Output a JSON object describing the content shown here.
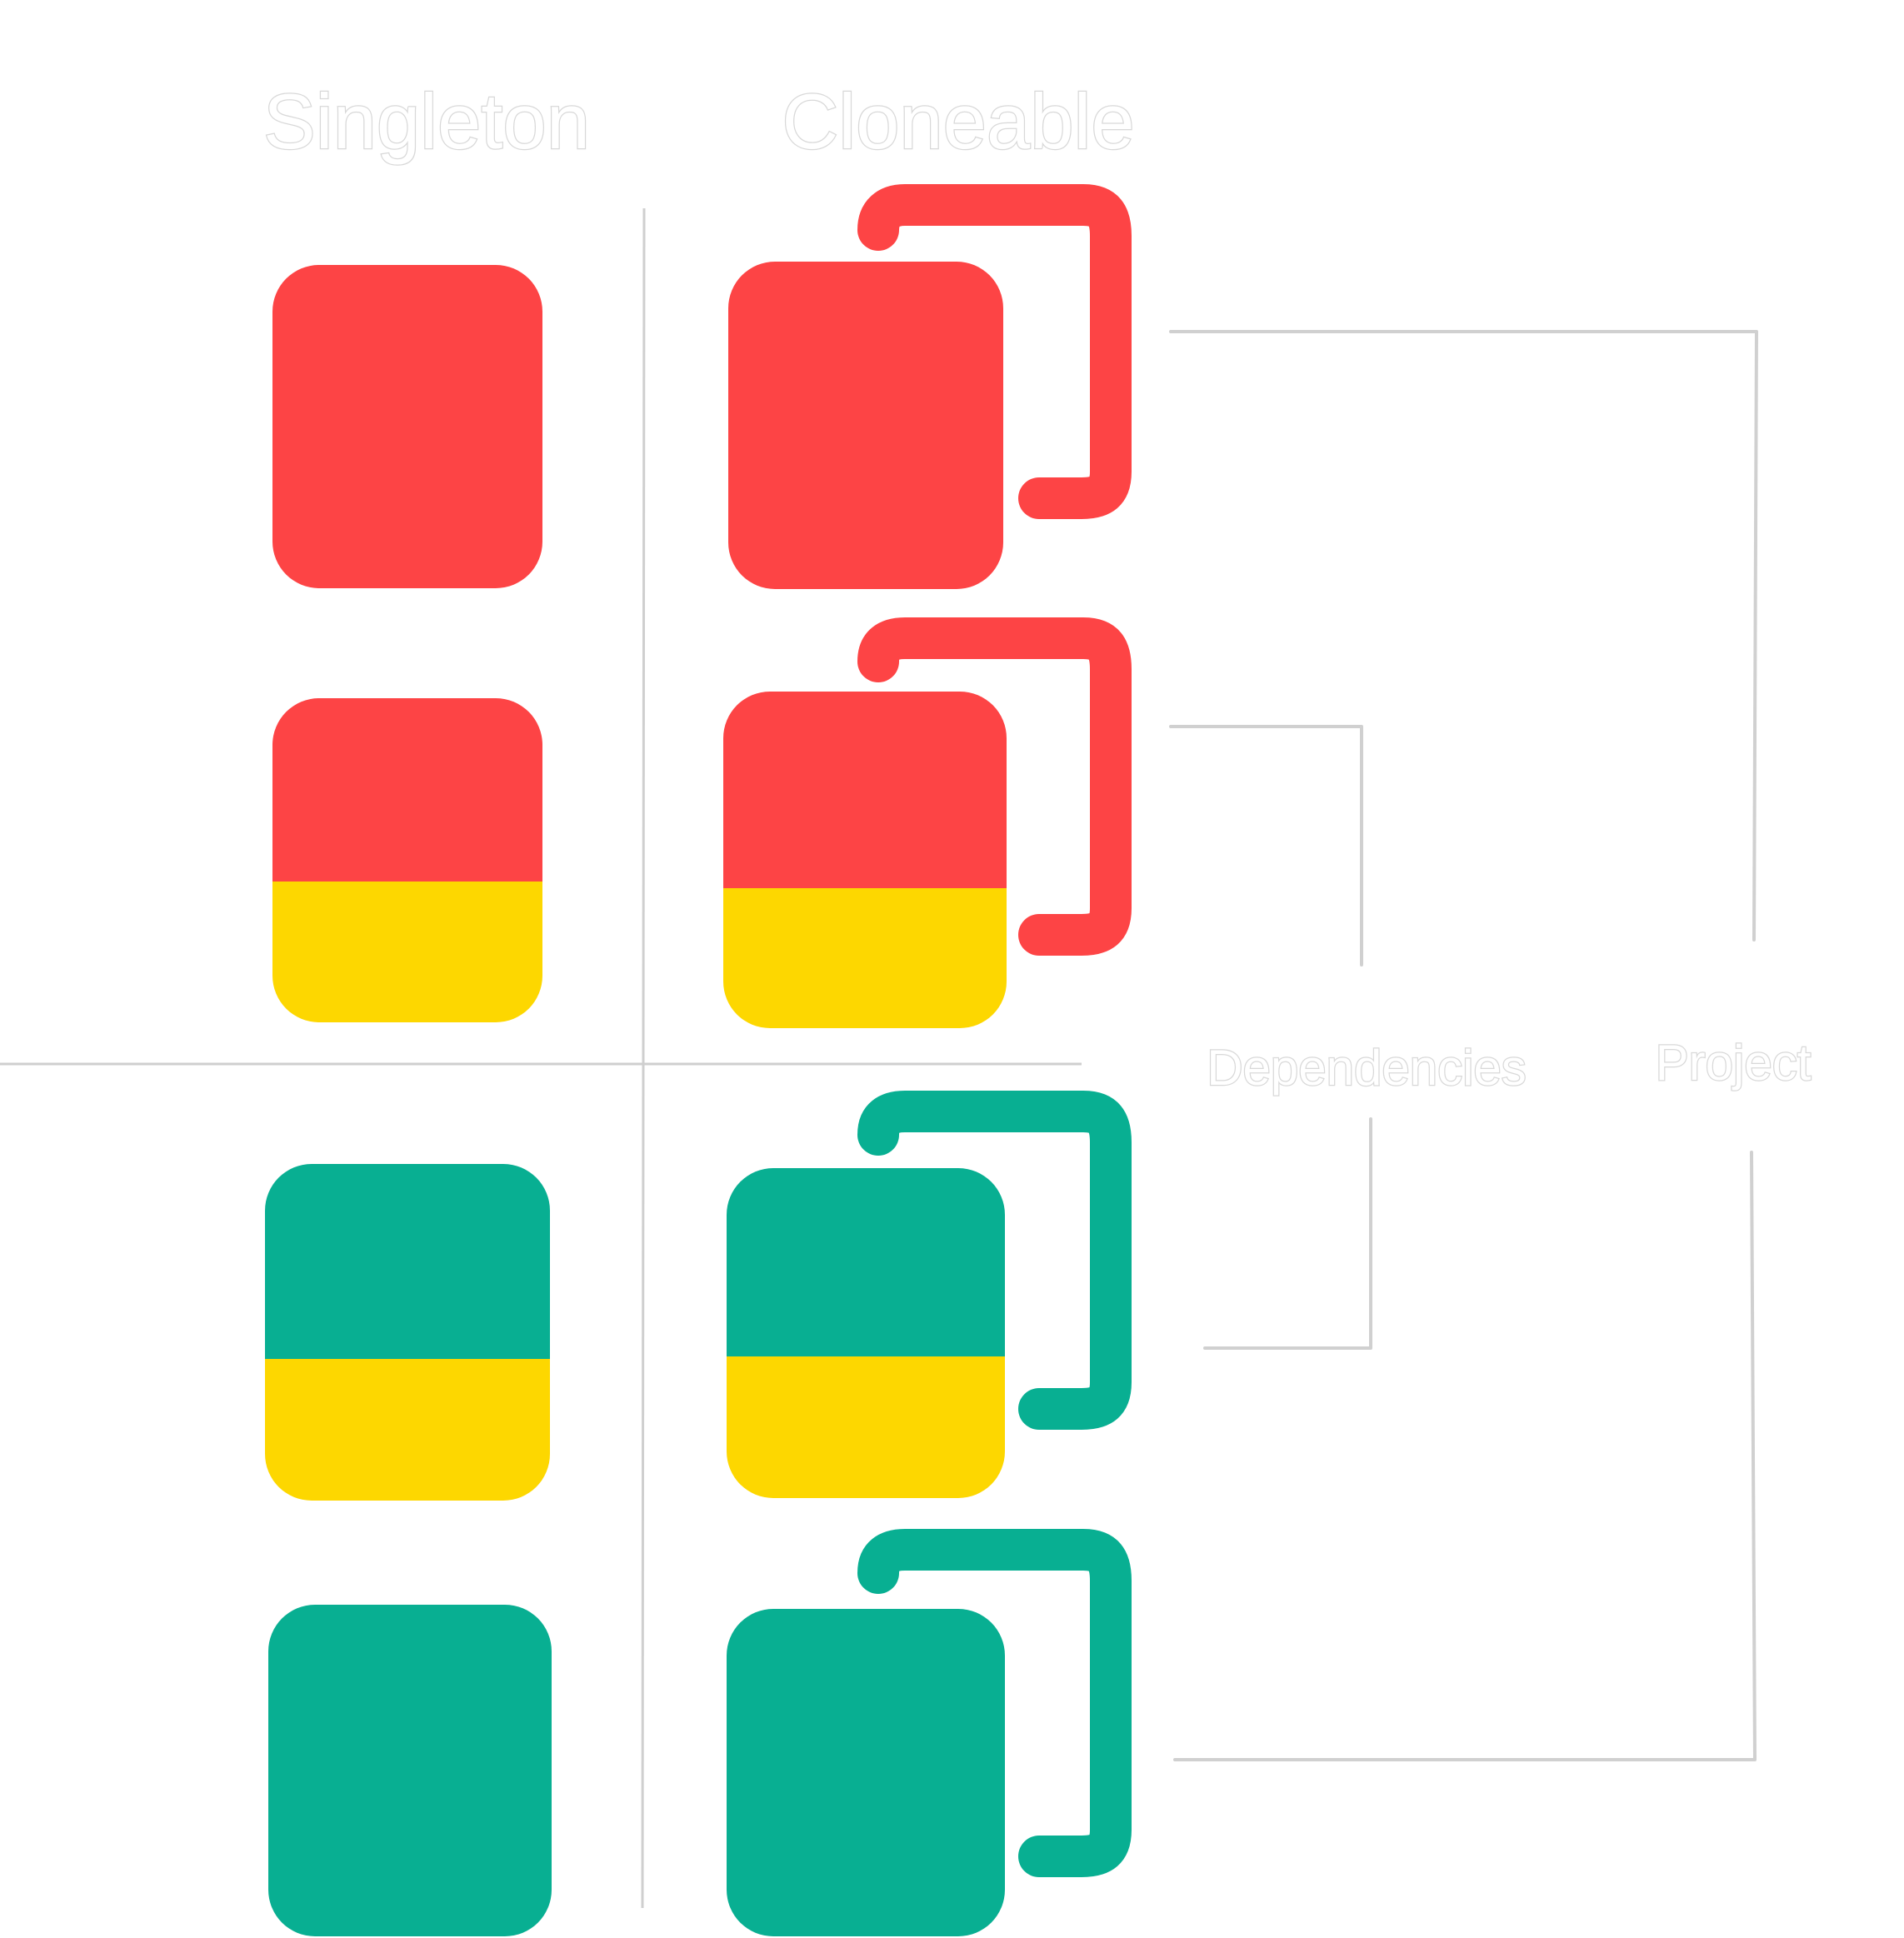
{
  "headers": {
    "singleton": "Singleton",
    "cloneable": "Cloneable"
  },
  "groups": {
    "dependencies": "Dependencies",
    "project": "Project"
  },
  "colors": {
    "red": "#FD4445",
    "yellow": "#FDD700",
    "teal": "#08AF92"
  },
  "cards": [
    {
      "column": "singleton",
      "row": 1,
      "fill": [
        "red"
      ]
    },
    {
      "column": "singleton",
      "row": 2,
      "fill": [
        "red",
        "yellow"
      ]
    },
    {
      "column": "singleton",
      "row": 3,
      "fill": [
        "teal",
        "yellow"
      ]
    },
    {
      "column": "singleton",
      "row": 4,
      "fill": [
        "teal"
      ]
    },
    {
      "column": "cloneable",
      "row": 1,
      "fill": [
        "red"
      ],
      "handle": "red"
    },
    {
      "column": "cloneable",
      "row": 2,
      "fill": [
        "red",
        "yellow"
      ],
      "handle": "red"
    },
    {
      "column": "cloneable",
      "row": 3,
      "fill": [
        "teal",
        "yellow"
      ],
      "handle": "teal"
    },
    {
      "column": "cloneable",
      "row": 4,
      "fill": [
        "teal"
      ],
      "handle": "teal"
    }
  ]
}
